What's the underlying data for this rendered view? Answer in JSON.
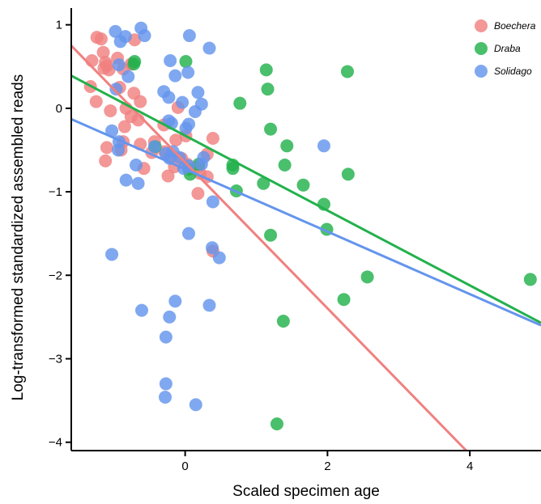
{
  "chart_data": {
    "type": "scatter",
    "title": "",
    "xlabel": "Scaled specimen age",
    "ylabel": "Log-transformed standardized assembled reads",
    "xlim": [
      -1.6,
      5.0
    ],
    "ylim": [
      -4.1,
      1.2
    ],
    "xticks": [
      0,
      2,
      4
    ],
    "yticks": [
      -4,
      -3,
      -2,
      -1,
      0,
      1
    ],
    "tick_labels": {
      "x": [
        "0",
        "2",
        "4"
      ],
      "y": [
        "−4",
        "−3",
        "−2",
        "−1",
        "0",
        "1"
      ]
    },
    "grid": false,
    "legend_position": "top-right",
    "series": [
      {
        "name": "Boechera",
        "color": "#F08080",
        "points": [
          [
            -1.31,
            0.57
          ],
          [
            -1.24,
            0.85
          ],
          [
            -1.18,
            0.83
          ],
          [
            -1.15,
            0.67
          ],
          [
            -1.14,
            0.48
          ],
          [
            -1.12,
            0.55
          ],
          [
            -1.1,
            0.51
          ],
          [
            -1.33,
            0.26
          ],
          [
            -1.25,
            0.08
          ],
          [
            -1.07,
            0.46
          ],
          [
            -0.95,
            0.6
          ],
          [
            -0.87,
            0.47
          ],
          [
            -0.76,
            0.53
          ],
          [
            -0.71,
            0.82
          ],
          [
            -0.72,
            0.18
          ],
          [
            -0.63,
            0.08
          ],
          [
            -0.83,
            0.0
          ],
          [
            -0.92,
            0.25
          ],
          [
            -1.05,
            -0.03
          ],
          [
            -0.76,
            -0.1
          ],
          [
            -0.66,
            -0.14
          ],
          [
            -0.85,
            -0.22
          ],
          [
            -1.1,
            -0.47
          ],
          [
            -1.12,
            -0.63
          ],
          [
            -0.9,
            -0.5
          ],
          [
            -0.87,
            -0.4
          ],
          [
            -0.63,
            -0.43
          ],
          [
            -0.47,
            -0.53
          ],
          [
            -0.43,
            -0.4
          ],
          [
            -0.29,
            -0.52
          ],
          [
            -0.24,
            -0.81
          ],
          [
            -0.19,
            -0.57
          ],
          [
            -0.15,
            -0.7
          ],
          [
            -0.13,
            -0.38
          ],
          [
            -0.1,
            0.01
          ],
          [
            0.01,
            -0.33
          ],
          [
            -0.05,
            -0.6
          ],
          [
            0.03,
            -0.67
          ],
          [
            0.1,
            -0.72
          ],
          [
            0.19,
            -0.7
          ],
          [
            0.21,
            -0.78
          ],
          [
            0.18,
            -1.02
          ],
          [
            0.31,
            -0.82
          ],
          [
            0.31,
            -0.55
          ],
          [
            0.39,
            -0.36
          ],
          [
            0.39,
            -1.71
          ],
          [
            -0.58,
            -0.72
          ],
          [
            -0.3,
            -0.2
          ]
        ],
        "trend": {
          "x": [
            -1.6,
            3.95
          ],
          "y": [
            0.75,
            -4.1
          ]
        }
      },
      {
        "name": "Draba",
        "color": "#22B14C",
        "points": [
          [
            -0.71,
            0.56
          ],
          [
            -0.72,
            0.53
          ],
          [
            0.01,
            0.56
          ],
          [
            1.14,
            0.46
          ],
          [
            1.16,
            0.23
          ],
          [
            0.77,
            0.06
          ],
          [
            2.28,
            0.44
          ],
          [
            1.2,
            -0.25
          ],
          [
            1.43,
            -0.45
          ],
          [
            1.4,
            -0.68
          ],
          [
            -0.42,
            -0.46
          ],
          [
            0.05,
            -0.73
          ],
          [
            0.07,
            -0.79
          ],
          [
            0.19,
            -0.67
          ],
          [
            0.67,
            -0.68
          ],
          [
            0.67,
            -0.72
          ],
          [
            0.72,
            -0.99
          ],
          [
            1.1,
            -0.9
          ],
          [
            1.66,
            -0.92
          ],
          [
            1.95,
            -1.15
          ],
          [
            2.29,
            -0.79
          ],
          [
            1.99,
            -1.45
          ],
          [
            1.2,
            -1.52
          ],
          [
            2.56,
            -2.02
          ],
          [
            2.23,
            -2.29
          ],
          [
            1.38,
            -2.55
          ],
          [
            1.29,
            -3.78
          ],
          [
            4.85,
            -2.05
          ]
        ],
        "trend": {
          "x": [
            -1.6,
            5.0
          ],
          "y": [
            0.39,
            -2.57
          ]
        }
      },
      {
        "name": "Solidago",
        "color": "#6495ED",
        "points": [
          [
            -0.98,
            0.92
          ],
          [
            -0.91,
            0.8
          ],
          [
            -0.84,
            0.86
          ],
          [
            -0.62,
            0.96
          ],
          [
            -0.57,
            0.87
          ],
          [
            0.06,
            0.87
          ],
          [
            0.34,
            0.72
          ],
          [
            -0.93,
            0.52
          ],
          [
            -0.8,
            0.38
          ],
          [
            -0.21,
            0.57
          ],
          [
            -0.14,
            0.39
          ],
          [
            0.04,
            0.43
          ],
          [
            -0.97,
            0.23
          ],
          [
            0.18,
            0.19
          ],
          [
            -0.23,
            0.13
          ],
          [
            0.23,
            0.05
          ],
          [
            0.14,
            -0.04
          ],
          [
            -0.04,
            0.07
          ],
          [
            -0.23,
            -0.15
          ],
          [
            -0.19,
            -0.18
          ],
          [
            0.05,
            -0.19
          ],
          [
            0.01,
            -0.24
          ],
          [
            -1.03,
            -0.27
          ],
          [
            -0.93,
            -0.4
          ],
          [
            -0.94,
            -0.5
          ],
          [
            -0.83,
            -0.86
          ],
          [
            -0.66,
            -0.9
          ],
          [
            -0.69,
            -0.68
          ],
          [
            -0.43,
            -0.46
          ],
          [
            -0.27,
            -0.54
          ],
          [
            -0.22,
            -0.6
          ],
          [
            -0.17,
            -0.52
          ],
          [
            -0.08,
            -0.59
          ],
          [
            -0.02,
            -0.72
          ],
          [
            0.05,
            -0.69
          ],
          [
            0.26,
            -0.59
          ],
          [
            0.23,
            -0.67
          ],
          [
            0.39,
            -1.12
          ],
          [
            0.05,
            -1.5
          ],
          [
            0.38,
            -1.67
          ],
          [
            0.48,
            -1.79
          ],
          [
            -1.03,
            -1.75
          ],
          [
            -0.61,
            -2.42
          ],
          [
            -0.14,
            -2.31
          ],
          [
            -0.22,
            -2.5
          ],
          [
            0.34,
            -2.36
          ],
          [
            -0.27,
            -2.74
          ],
          [
            -0.27,
            -3.3
          ],
          [
            -0.28,
            -3.46
          ],
          [
            0.15,
            -3.55
          ],
          [
            1.95,
            -0.45
          ],
          [
            -0.3,
            0.2
          ]
        ],
        "trend": {
          "x": [
            -1.6,
            5.0
          ],
          "y": [
            -0.13,
            -2.6
          ]
        }
      }
    ]
  }
}
